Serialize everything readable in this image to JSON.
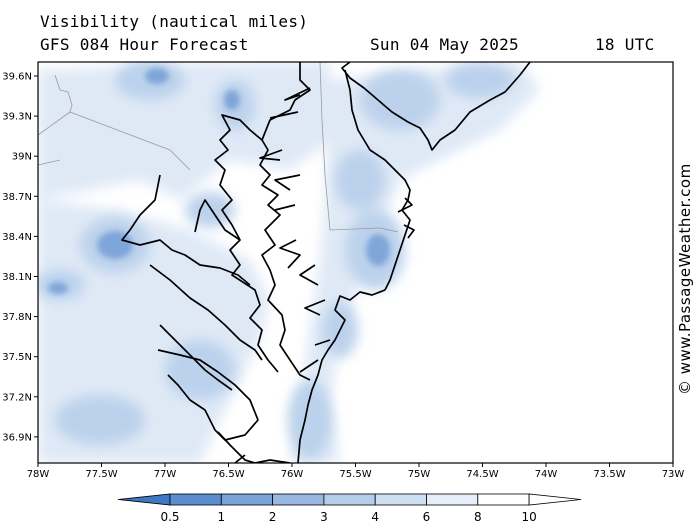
{
  "header": {
    "variable": "Visibility (nautical miles)",
    "forecast": "GFS 084 Hour Forecast",
    "date": "Sun 04 May 2025",
    "time": "18 UTC"
  },
  "credit": "© www.PassageWeather.com",
  "map": {
    "lat_labels": [
      "39.6N",
      "39.3N",
      "39N",
      "38.7N",
      "38.4N",
      "38.1N",
      "37.8N",
      "37.5N",
      "37.2N",
      "36.9N"
    ],
    "lon_labels": [
      "78W",
      "77.5W",
      "77W",
      "76.5W",
      "76W",
      "75.5W",
      "75W",
      "74.5W",
      "74W",
      "73.5W",
      "73W"
    ],
    "colors": {
      "land_line": "#000000",
      "border": "#9a9a9a",
      "shade_light": "#dfe9f6",
      "shade_mid": "#bcd2ec",
      "shade_dark": "#7ea6d9"
    }
  },
  "legend": {
    "values": [
      "0.5",
      "1",
      "2",
      "3",
      "4",
      "6",
      "8",
      "10"
    ],
    "colors": [
      "#3f78c2",
      "#5a8dcf",
      "#7aa3d9",
      "#98b8e2",
      "#b5cdea",
      "#cfdff2",
      "#e6eef9",
      "#ffffff"
    ]
  }
}
